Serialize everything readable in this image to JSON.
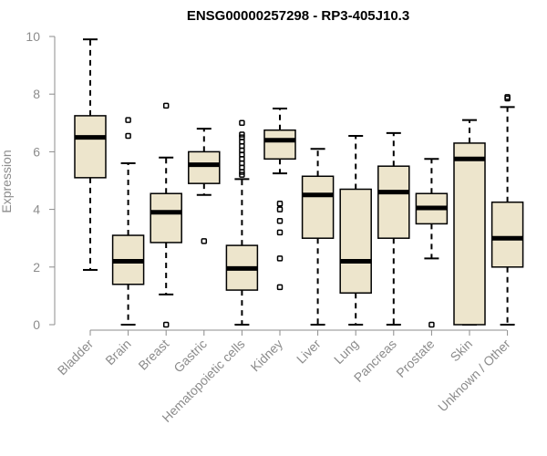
{
  "chart_data": {
    "type": "boxplot",
    "title": "ENSG00000257298 - RP3-405J10.3",
    "xlabel": "",
    "ylabel": "Expression",
    "ylim": [
      0,
      10
    ],
    "yticks": [
      0,
      2,
      4,
      6,
      8,
      10
    ],
    "box_color": "#ede5cc",
    "categories": [
      "Bladder",
      "Brain",
      "Breast",
      "Gastric",
      "Hematopoietic cells",
      "Kidney",
      "Liver",
      "Lung",
      "Pancreas",
      "Prostate",
      "Skin",
      "Unknown / Other"
    ],
    "boxes": [
      {
        "category": "Bladder",
        "min": 1.9,
        "q1": 5.1,
        "median": 6.5,
        "q3": 7.25,
        "max": 9.9,
        "outliers": []
      },
      {
        "category": "Brain",
        "min": 0.0,
        "q1": 1.4,
        "median": 2.2,
        "q3": 3.1,
        "max": 5.6,
        "outliers": [
          6.55,
          7.1
        ]
      },
      {
        "category": "Breast",
        "min": 1.05,
        "q1": 2.85,
        "median": 3.9,
        "q3": 4.55,
        "max": 5.8,
        "outliers": [
          0.0,
          7.6
        ]
      },
      {
        "category": "Gastric",
        "min": 4.5,
        "q1": 4.9,
        "median": 5.55,
        "q3": 6.0,
        "max": 6.8,
        "outliers": [
          2.9
        ]
      },
      {
        "category": "Hematopoietic cells",
        "min": 0.0,
        "q1": 1.2,
        "median": 1.95,
        "q3": 2.75,
        "max": 5.05,
        "outliers": [
          5.2,
          5.3,
          5.45,
          5.6,
          5.75,
          5.9,
          6.05,
          6.2,
          6.35,
          6.5,
          6.6,
          7.0
        ]
      },
      {
        "category": "Kidney",
        "min": 5.25,
        "q1": 5.75,
        "median": 6.4,
        "q3": 6.75,
        "max": 7.5,
        "outliers": [
          1.3,
          2.3,
          3.2,
          3.6,
          4.0,
          4.2
        ]
      },
      {
        "category": "Liver",
        "min": 0.0,
        "q1": 3.0,
        "median": 4.5,
        "q3": 5.15,
        "max": 6.1,
        "outliers": []
      },
      {
        "category": "Lung",
        "min": 0.0,
        "q1": 1.1,
        "median": 2.2,
        "q3": 4.7,
        "max": 6.55,
        "outliers": []
      },
      {
        "category": "Pancreas",
        "min": 0.0,
        "q1": 3.0,
        "median": 4.6,
        "q3": 5.5,
        "max": 6.65,
        "outliers": []
      },
      {
        "category": "Prostate",
        "min": 2.3,
        "q1": 3.5,
        "median": 4.05,
        "q3": 4.55,
        "max": 5.75,
        "outliers": [
          0.0
        ]
      },
      {
        "category": "Skin",
        "min": 0.0,
        "q1": 0.0,
        "median": 5.75,
        "q3": 6.3,
        "max": 7.1,
        "outliers": []
      },
      {
        "category": "Unknown / Other",
        "min": 0.0,
        "q1": 2.0,
        "median": 3.0,
        "q3": 4.25,
        "max": 7.55,
        "outliers": [
          7.85,
          7.9
        ]
      }
    ]
  }
}
